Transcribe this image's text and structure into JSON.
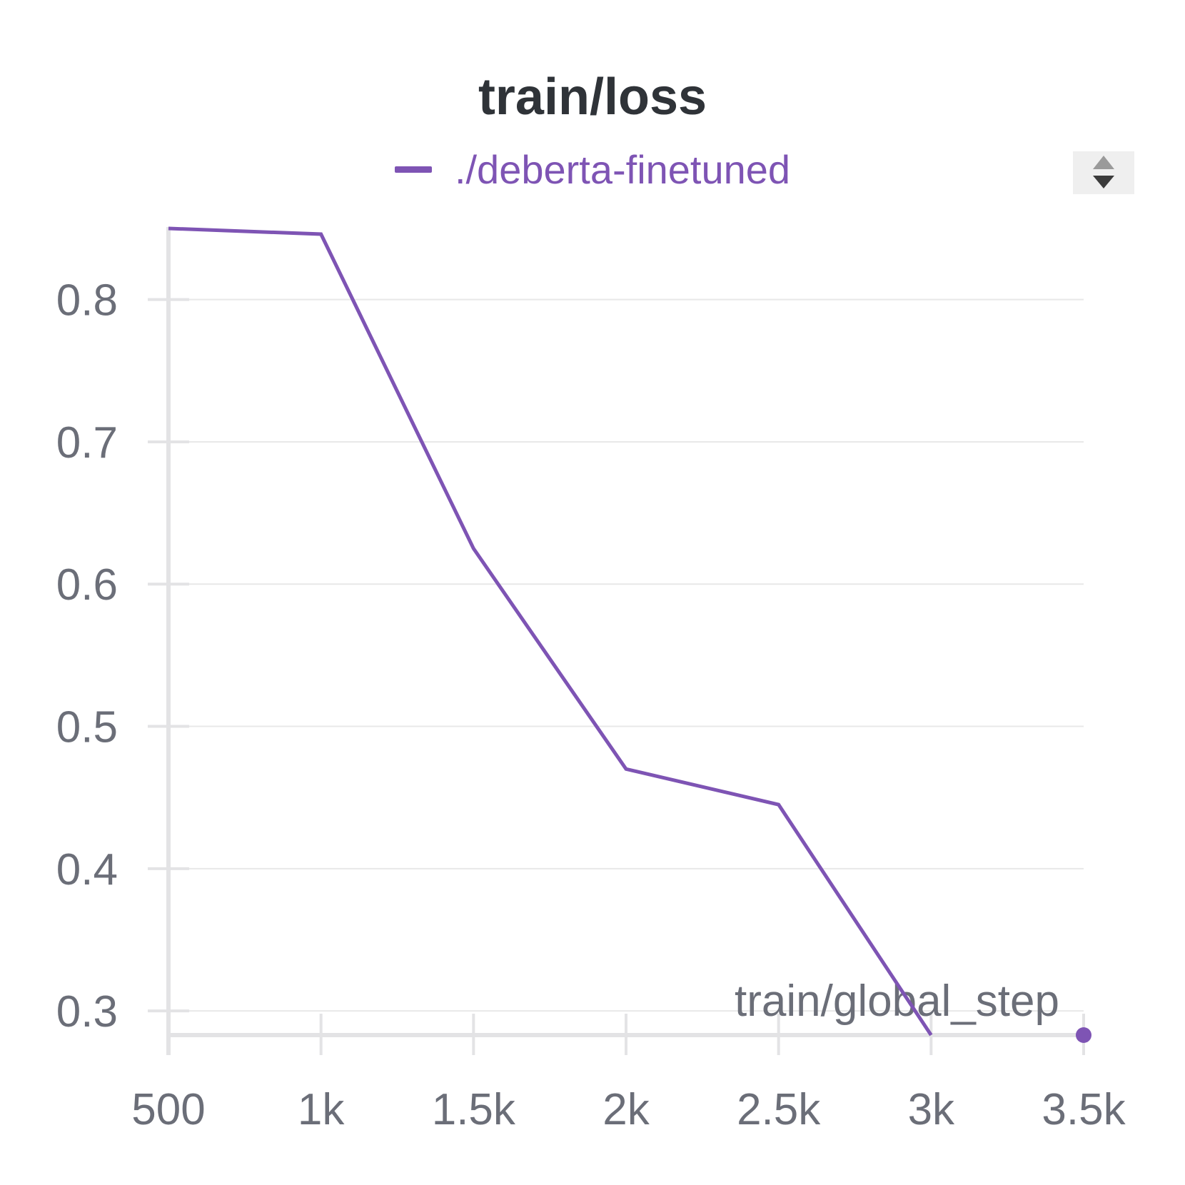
{
  "chart_data": {
    "type": "line",
    "title": "train/loss",
    "xlabel": "train/global_step",
    "ylabel": "",
    "x_ticks": [
      "500",
      "1k",
      "1.5k",
      "2k",
      "2.5k",
      "3k",
      "3.5k"
    ],
    "y_ticks": [
      "0.3",
      "0.4",
      "0.5",
      "0.6",
      "0.7",
      "0.8"
    ],
    "xlim": [
      500,
      3500
    ],
    "ylim": [
      0.283,
      0.85
    ],
    "grid": true,
    "legend_position": "top-center",
    "series": [
      {
        "name": "./deberta-finetuned",
        "color": "#7e54b4",
        "x": [
          500,
          1000,
          1500,
          2000,
          2500,
          3000
        ],
        "y": [
          0.85,
          0.846,
          0.625,
          0.47,
          0.445,
          0.283
        ]
      }
    ]
  },
  "legend": {
    "label": "./deberta-finetuned",
    "color": "#7e54b4"
  },
  "controls": {
    "sort_icon": "sort-up-down-icon"
  },
  "colors": {
    "text": "#6b6e78",
    "title": "#2f3338",
    "grid": "#e8e8e8",
    "axis": "#e3e3e5"
  }
}
